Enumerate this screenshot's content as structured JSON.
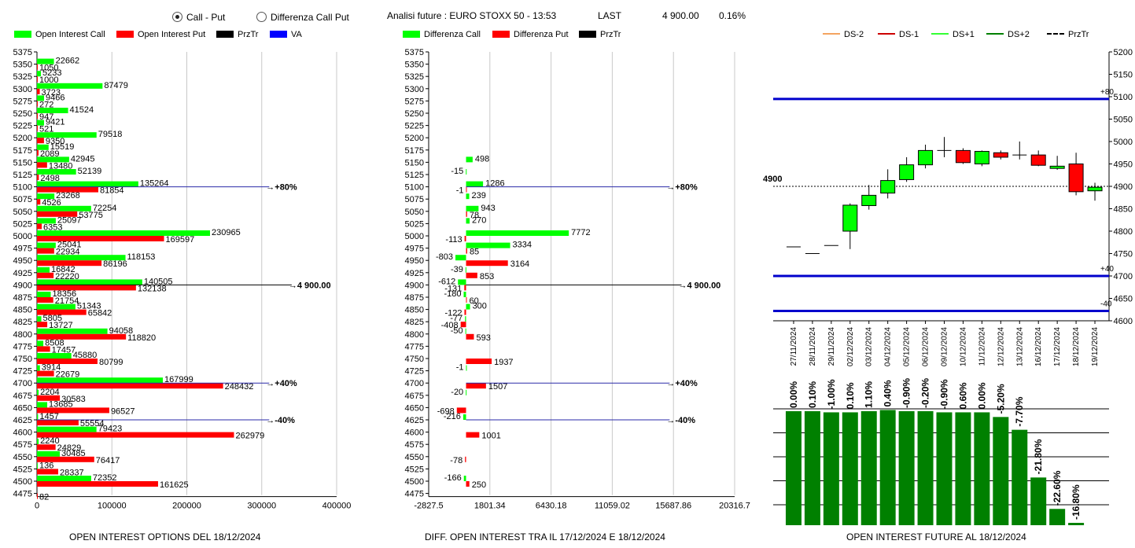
{
  "header": {
    "radio_call_put": "Call - Put",
    "radio_differenza": "Differenza Call Put",
    "selected": "call_put",
    "analysis_title": "Analisi future : EURO STOXX 50 - 13:53",
    "last_label": "LAST",
    "last_value": "4 900.00",
    "last_change": "0.16%"
  },
  "legend1": [
    {
      "label": "Open Interest Call",
      "color": "#00ff00",
      "kind": "bar"
    },
    {
      "label": "Open Interest Put",
      "color": "#ff0000",
      "kind": "bar"
    },
    {
      "label": "PrzTr",
      "color": "#000000",
      "kind": "bar"
    },
    {
      "label": "VA",
      "color": "#0000ff",
      "kind": "bar"
    }
  ],
  "legend2": [
    {
      "label": "Differenza Call",
      "color": "#00ff00",
      "kind": "bar"
    },
    {
      "label": "Differenza Put",
      "color": "#ff0000",
      "kind": "bar"
    },
    {
      "label": "PrzTr",
      "color": "#000000",
      "kind": "bar"
    }
  ],
  "legend3": [
    {
      "label": "DS-2",
      "color": "#f4a460",
      "kind": "line"
    },
    {
      "label": "DS-1",
      "color": "#cc0000",
      "kind": "line"
    },
    {
      "label": "DS+1",
      "color": "#33ff33",
      "kind": "line"
    },
    {
      "label": "DS+2",
      "color": "#008000",
      "kind": "line"
    },
    {
      "label": "PrzTr",
      "color": "#000000",
      "kind": "dash"
    }
  ],
  "footers": {
    "chart1": "OPEN INTEREST OPTIONS DEL 18/12/2024",
    "chart2": "DIFF. OPEN INTEREST TRA IL 17/12/2024 E 18/12/2024",
    "chart3": "OPEN INTEREST FUTURE AL 18/12/2024"
  },
  "colors": {
    "call": "#00ff00",
    "put": "#ff0000",
    "blue": "#0000cc",
    "future_bar": "#008000"
  },
  "chart_data": [
    {
      "type": "bar",
      "orientation": "horizontal",
      "strikes": [
        5375,
        5350,
        5325,
        5300,
        5275,
        5250,
        5225,
        5200,
        5175,
        5150,
        5125,
        5100,
        5075,
        5050,
        5025,
        5000,
        4975,
        4950,
        4925,
        4900,
        4875,
        4850,
        4825,
        4800,
        4775,
        4750,
        4725,
        4700,
        4675,
        4650,
        4625,
        4600,
        4575,
        4550,
        4525,
        4500,
        4475
      ],
      "series": [
        {
          "name": "Open Interest Call",
          "values": [
            null,
            22662,
            5233,
            87479,
            9466,
            41524,
            9421,
            79518,
            15519,
            42945,
            52139,
            135264,
            23268,
            72254,
            25097,
            230965,
            25041,
            118153,
            16842,
            140505,
            18356,
            51343,
            5805,
            94058,
            8508,
            45880,
            3914,
            167999,
            2204,
            13685,
            1457,
            79423,
            2240,
            30485,
            136,
            72352,
            null
          ]
        },
        {
          "name": "Open Interest Put",
          "values": [
            null,
            1050,
            1000,
            3723,
            272,
            947,
            521,
            9350,
            2089,
            13480,
            2498,
            81854,
            4526,
            53775,
            6353,
            169597,
            22934,
            86196,
            22220,
            132138,
            21754,
            65842,
            13727,
            118820,
            17457,
            80799,
            22679,
            248432,
            30583,
            96527,
            55554,
            262979,
            24829,
            76417,
            28337,
            161625,
            82
          ]
        }
      ],
      "xticks": [
        "0",
        "100000",
        "200000",
        "300000",
        "400000"
      ],
      "xlim": [
        0,
        400000
      ],
      "reference_lines": [
        {
          "strike": 5100,
          "value": 310000,
          "label": "+80%"
        },
        {
          "strike": 4900,
          "value": 340000,
          "label": "4 900.00"
        },
        {
          "strike": 4700,
          "value": 310000,
          "label": "+40%"
        },
        {
          "strike": 4625,
          "value": 310000,
          "label": "-40%"
        }
      ],
      "title": "OPEN INTEREST OPTIONS DEL 18/12/2024"
    },
    {
      "type": "bar",
      "orientation": "horizontal",
      "strikes": [
        5375,
        5350,
        5325,
        5300,
        5275,
        5250,
        5225,
        5200,
        5175,
        5150,
        5125,
        5100,
        5075,
        5050,
        5025,
        5000,
        4975,
        4950,
        4925,
        4900,
        4875,
        4850,
        4825,
        4800,
        4775,
        4750,
        4725,
        4700,
        4675,
        4650,
        4625,
        4600,
        4575,
        4550,
        4525,
        4500,
        4475
      ],
      "series": [
        {
          "name": "Differenza Call",
          "values": [
            null,
            null,
            null,
            null,
            null,
            null,
            null,
            null,
            null,
            498,
            -15,
            1286,
            239,
            943,
            270,
            7772,
            3334,
            -803,
            -39,
            -612,
            -180,
            300,
            -77,
            -50,
            null,
            null,
            -1,
            null,
            -20,
            null,
            -216,
            null,
            null,
            null,
            null,
            -166,
            null
          ]
        },
        {
          "name": "Differenza Put",
          "values": [
            null,
            null,
            null,
            null,
            null,
            null,
            null,
            null,
            null,
            null,
            null,
            -1,
            null,
            78,
            null,
            -113,
            85,
            3164,
            853,
            -131,
            60,
            -122,
            -408,
            593,
            null,
            1937,
            null,
            1507,
            null,
            -698,
            null,
            1001,
            null,
            -78,
            null,
            250,
            null
          ]
        }
      ],
      "xticks": [
        "-2827.5",
        "1801.34",
        "6430.18",
        "11059.02",
        "15687.86",
        "20316.7"
      ],
      "xlim": [
        -2827.5,
        20316.7
      ],
      "reference_lines": [
        {
          "strike": 5100,
          "value": 15400,
          "label": "+80%"
        },
        {
          "strike": 4900,
          "value": 16300,
          "label": "4 900.00"
        },
        {
          "strike": 4700,
          "value": 15400,
          "label": "+40%"
        },
        {
          "strike": 4625,
          "value": 15400,
          "label": "-40%"
        }
      ],
      "title": "DIFF. OPEN INTEREST TRA IL 17/12/2024 E 18/12/2024"
    },
    {
      "type": "candlestick",
      "dates": [
        "27/11/2024",
        "28/11/2024",
        "29/11/2024",
        "02/12/2024",
        "03/12/2024",
        "04/12/2024",
        "05/12/2024",
        "06/12/2024",
        "09/12/2024",
        "10/12/2024",
        "11/12/2024",
        "12/12/2024",
        "13/12/2024",
        "16/12/2024",
        "17/12/2024",
        "18/12/2024",
        "19/12/2024"
      ],
      "candles": [
        {
          "o": 4765,
          "c": 4765,
          "h": 4765,
          "l": 4765
        },
        {
          "o": 4750,
          "c": 4750,
          "h": 4750,
          "l": 4750
        },
        {
          "o": 4768,
          "c": 4768,
          "h": 4768,
          "l": 4768
        },
        {
          "o": 4800,
          "c": 4858,
          "h": 4862,
          "l": 4760
        },
        {
          "o": 4857,
          "c": 4880,
          "h": 4903,
          "l": 4848
        },
        {
          "o": 4885,
          "c": 4913,
          "h": 4938,
          "l": 4873
        },
        {
          "o": 4915,
          "c": 4948,
          "h": 4965,
          "l": 4910
        },
        {
          "o": 4948,
          "c": 4980,
          "h": 4993,
          "l": 4940
        },
        {
          "o": 4980,
          "c": 4980,
          "h": 5010,
          "l": 4965
        },
        {
          "o": 4980,
          "c": 4953,
          "h": 4985,
          "l": 4950
        },
        {
          "o": 4950,
          "c": 4978,
          "h": 4980,
          "l": 4945
        },
        {
          "o": 4975,
          "c": 4965,
          "h": 4980,
          "l": 4960
        },
        {
          "o": 4970,
          "c": 4970,
          "h": 5000,
          "l": 4960
        },
        {
          "o": 4970,
          "c": 4947,
          "h": 4980,
          "l": 4945
        },
        {
          "o": 4940,
          "c": 4945,
          "h": 4968,
          "l": 4937
        },
        {
          "o": 4950,
          "c": 4888,
          "h": 4975,
          "l": 4880
        },
        {
          "o": 4890,
          "c": 4898,
          "h": 4908,
          "l": 4868
        }
      ],
      "yticks": [
        "5200",
        "5150",
        "5100",
        "5050",
        "5000",
        "4950",
        "4900",
        "4850",
        "4800",
        "4750",
        "4700",
        "4650",
        "4600"
      ],
      "ylim": [
        4600,
        5200
      ],
      "przTr": 4900,
      "przTr_label": "4900",
      "levels": [
        {
          "value": 5095,
          "label": "+80"
        },
        {
          "value": 4700,
          "label": "+40"
        },
        {
          "value": 4622,
          "label": "-40"
        }
      ]
    },
    {
      "type": "bar",
      "categories": [
        "27/11/2024",
        "28/11/2024",
        "29/11/2024",
        "02/12/2024",
        "03/12/2024",
        "04/12/2024",
        "05/12/2024",
        "06/12/2024",
        "09/12/2024",
        "10/12/2024",
        "11/12/2024",
        "12/12/2024",
        "13/12/2024",
        "16/12/2024",
        "17/12/2024",
        "18/12/2024",
        "19/12/2024"
      ],
      "bar_levels": [
        0.98,
        0.98,
        0.97,
        0.97,
        0.98,
        0.99,
        0.98,
        0.98,
        0.97,
        0.97,
        0.97,
        0.93,
        0.82,
        0.41,
        0.14,
        0.02,
        0.0
      ],
      "labels": [
        "0.00%",
        "0.10%",
        "-1.00%",
        "0.10%",
        "1.10%",
        "0.40%",
        "-0.90%",
        "-0.20%",
        "-0.90%",
        "0.60%",
        "0.00%",
        "-5.20%",
        "-7.70%",
        "-21.80%",
        "-22.60%",
        "-16.80%",
        ""
      ]
    }
  ]
}
